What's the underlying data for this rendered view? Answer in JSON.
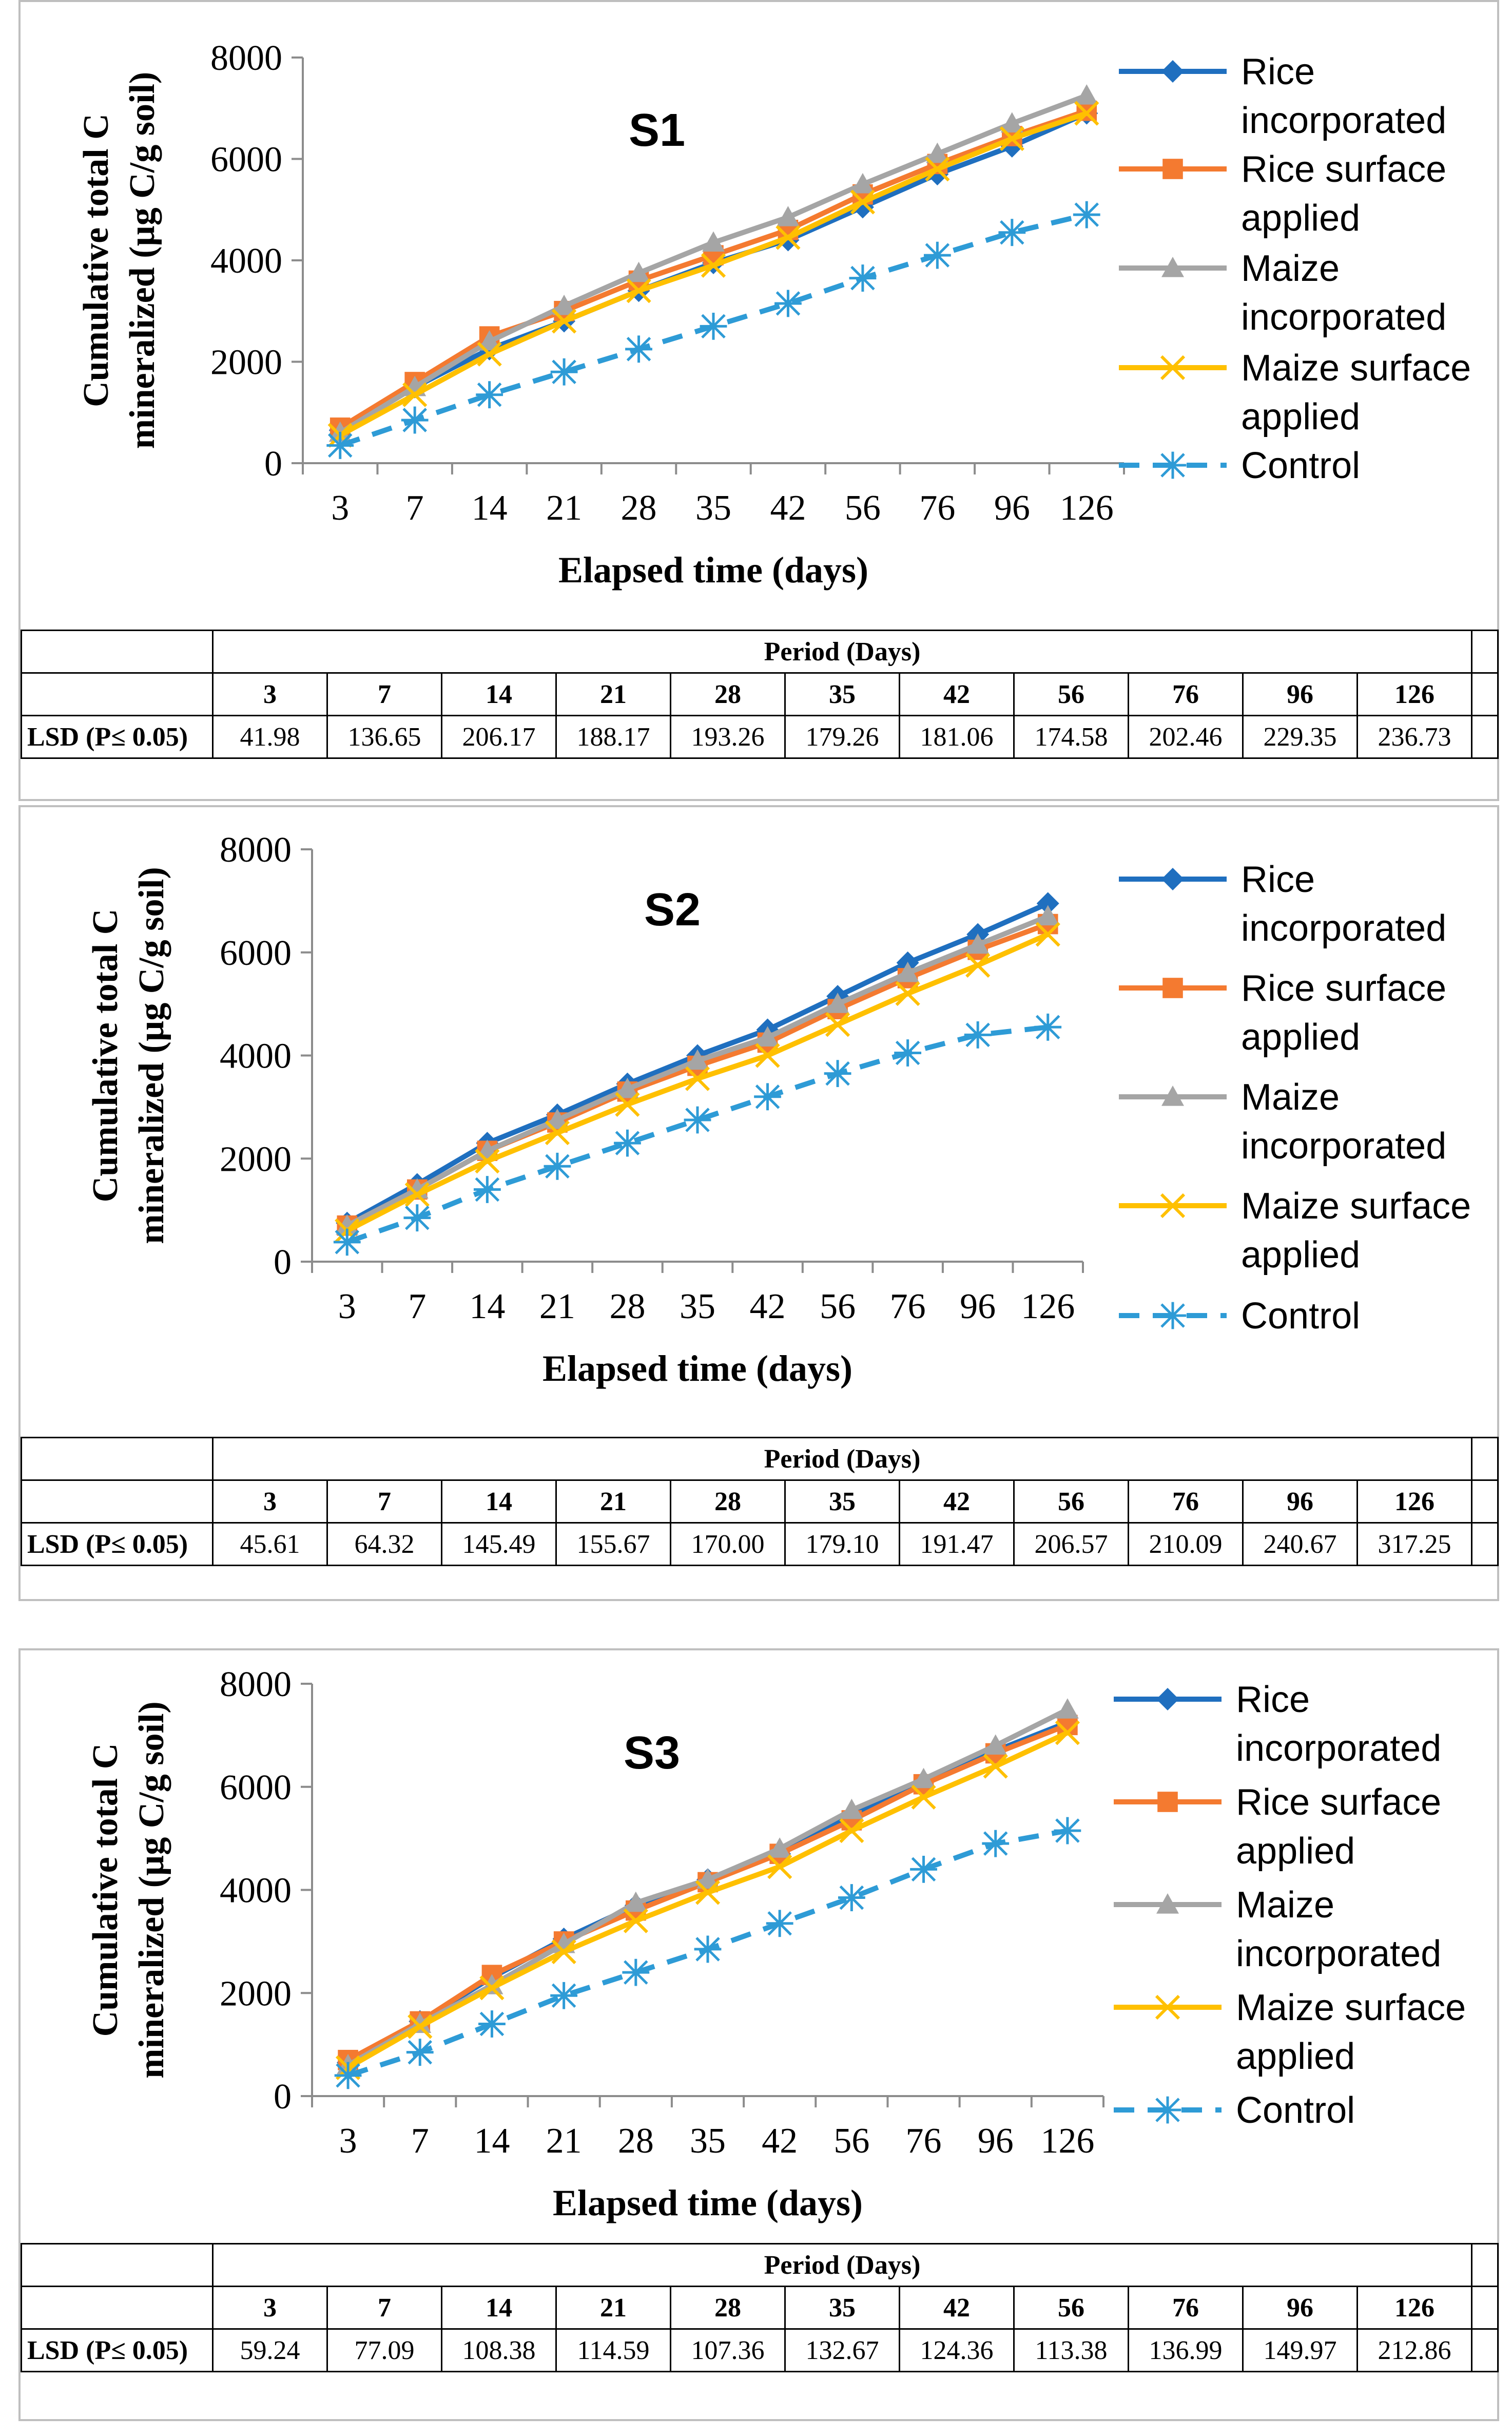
{
  "chart_data": [
    {
      "type": "line",
      "title": "S1",
      "xlabel": "Elapsed time (days)",
      "ylabel": "Cumulative total C mineralized (µg C/g soil)",
      "ylim": [
        0,
        8000
      ],
      "yticks": [
        0,
        2000,
        4000,
        6000,
        8000
      ],
      "categories": [
        "3",
        "7",
        "14",
        "21",
        "28",
        "35",
        "42",
        "56",
        "76",
        "96",
        "126"
      ],
      "legend_position": "right",
      "series": [
        {
          "name": "Rice incorporated",
          "color": "#1f6fbf",
          "marker": "diamond",
          "dash": false,
          "values": [
            650,
            1500,
            2250,
            2800,
            3400,
            3950,
            4400,
            5050,
            5700,
            6250,
            6900
          ]
        },
        {
          "name": "Rice surface applied",
          "color": "#f47a30",
          "marker": "square",
          "dash": false,
          "values": [
            700,
            1600,
            2500,
            3000,
            3600,
            4100,
            4600,
            5300,
            5900,
            6450,
            6950
          ]
        },
        {
          "name": "Maize incorporated",
          "color": "#a5a5a5",
          "marker": "triangle",
          "dash": false,
          "values": [
            600,
            1500,
            2400,
            3100,
            3750,
            4350,
            4850,
            5500,
            6100,
            6700,
            7250
          ]
        },
        {
          "name": "Maize surface applied",
          "color": "#ffc000",
          "marker": "x",
          "dash": false,
          "values": [
            550,
            1350,
            2150,
            2800,
            3400,
            3900,
            4450,
            5150,
            5800,
            6400,
            6900
          ]
        },
        {
          "name": "Control",
          "color": "#2e9bd6",
          "marker": "star",
          "dash": true,
          "values": [
            350,
            850,
            1350,
            1800,
            2250,
            2700,
            3150,
            3650,
            4100,
            4550,
            4900
          ]
        }
      ],
      "table": {
        "period_label": "Period (Days)",
        "row_label": "LSD (P≤ 0.05)",
        "columns": [
          "3",
          "7",
          "14",
          "21",
          "28",
          "35",
          "42",
          "56",
          "76",
          "96",
          "126"
        ],
        "values": [
          "41.98",
          "136.65",
          "206.17",
          "188.17",
          "193.26",
          "179.26",
          "181.06",
          "174.58",
          "202.46",
          "229.35",
          "236.73"
        ]
      }
    },
    {
      "type": "line",
      "title": "S2",
      "xlabel": "Elapsed time (days)",
      "ylabel": "Cumulative total C mineralized (µg C/g soil)",
      "ylim": [
        0,
        8000
      ],
      "yticks": [
        0,
        2000,
        4000,
        6000,
        8000
      ],
      "categories": [
        "3",
        "7",
        "14",
        "21",
        "28",
        "35",
        "42",
        "56",
        "76",
        "96",
        "126"
      ],
      "legend_position": "right",
      "series": [
        {
          "name": "Rice incorporated",
          "color": "#1f6fbf",
          "marker": "diamond",
          "dash": false,
          "values": [
            750,
            1500,
            2300,
            2850,
            3450,
            4000,
            4500,
            5150,
            5800,
            6350,
            6950
          ]
        },
        {
          "name": "Rice surface applied",
          "color": "#f47a30",
          "marker": "square",
          "dash": false,
          "values": [
            700,
            1400,
            2150,
            2700,
            3300,
            3800,
            4250,
            4900,
            5500,
            6050,
            6550
          ]
        },
        {
          "name": "Maize incorporated",
          "color": "#a5a5a5",
          "marker": "triangle",
          "dash": false,
          "values": [
            700,
            1400,
            2150,
            2750,
            3350,
            3900,
            4350,
            5000,
            5600,
            6150,
            6700
          ]
        },
        {
          "name": "Maize surface applied",
          "color": "#ffc000",
          "marker": "x",
          "dash": false,
          "values": [
            600,
            1300,
            1950,
            2500,
            3050,
            3550,
            4000,
            4600,
            5200,
            5750,
            6350
          ]
        },
        {
          "name": "Control",
          "color": "#2e9bd6",
          "marker": "star",
          "dash": true,
          "values": [
            380,
            850,
            1400,
            1850,
            2300,
            2750,
            3200,
            3650,
            4050,
            4400,
            4550
          ]
        }
      ],
      "table": {
        "period_label": "Period (Days)",
        "row_label": "LSD (P≤ 0.05)",
        "columns": [
          "3",
          "7",
          "14",
          "21",
          "28",
          "35",
          "42",
          "56",
          "76",
          "96",
          "126"
        ],
        "values": [
          "45.61",
          "64.32",
          "145.49",
          "155.67",
          "170.00",
          "179.10",
          "191.47",
          "206.57",
          "210.09",
          "240.67",
          "317.25"
        ]
      }
    },
    {
      "type": "line",
      "title": "S3",
      "xlabel": "Elapsed time (days)",
      "ylabel": "Cumulative total C mineralized (µg C/g soil)",
      "ylim": [
        0,
        8000
      ],
      "yticks": [
        0,
        2000,
        4000,
        6000,
        8000
      ],
      "categories": [
        "3",
        "7",
        "14",
        "21",
        "28",
        "35",
        "42",
        "56",
        "76",
        "96",
        "126"
      ],
      "legend_position": "right",
      "series": [
        {
          "name": "Rice incorporated",
          "color": "#1f6fbf",
          "marker": "diamond",
          "dash": false,
          "values": [
            650,
            1450,
            2300,
            3050,
            3700,
            4200,
            4700,
            5450,
            6100,
            6700,
            7250
          ]
        },
        {
          "name": "Rice surface applied",
          "color": "#f47a30",
          "marker": "square",
          "dash": false,
          "values": [
            700,
            1450,
            2350,
            3000,
            3600,
            4150,
            4700,
            5350,
            6050,
            6650,
            7200
          ]
        },
        {
          "name": "Maize incorporated",
          "color": "#a5a5a5",
          "marker": "triangle",
          "dash": false,
          "values": [
            600,
            1400,
            2150,
            2950,
            3750,
            4200,
            4800,
            5550,
            6150,
            6800,
            7500
          ]
        },
        {
          "name": "Maize surface applied",
          "color": "#ffc000",
          "marker": "x",
          "dash": false,
          "values": [
            550,
            1350,
            2100,
            2800,
            3400,
            3950,
            4450,
            5150,
            5800,
            6400,
            7050
          ]
        },
        {
          "name": "Control",
          "color": "#2e9bd6",
          "marker": "star",
          "dash": true,
          "values": [
            400,
            850,
            1400,
            1950,
            2400,
            2850,
            3350,
            3850,
            4400,
            4900,
            5150
          ]
        }
      ],
      "table": {
        "period_label": "Period (Days)",
        "row_label": "LSD (P≤ 0.05)",
        "columns": [
          "3",
          "7",
          "14",
          "21",
          "28",
          "35",
          "42",
          "56",
          "76",
          "96",
          "126"
        ],
        "values": [
          "59.24",
          "77.09",
          "108.38",
          "114.59",
          "107.36",
          "132.67",
          "124.36",
          "113.38",
          "136.99",
          "149.97",
          "212.86"
        ]
      }
    }
  ]
}
